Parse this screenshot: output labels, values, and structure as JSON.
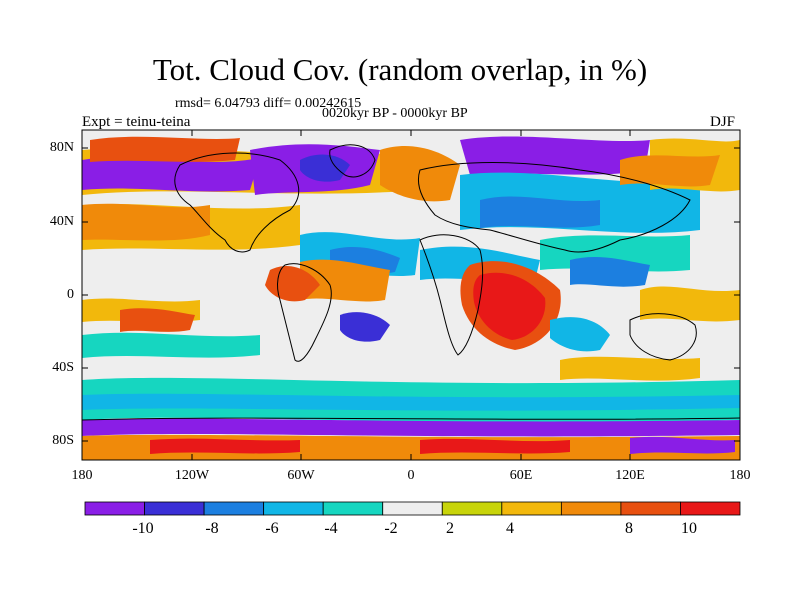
{
  "title": "Tot. Cloud Cov. (random overlap, in %)",
  "stats": "rmsd= 6.04793 diff= 0.00242615",
  "period": "0020kyr BP - 0000kyr BP",
  "experiment": "Expt = teinu-teina",
  "season": "DJF",
  "map": {
    "lat_ticks": [
      "80N",
      "40N",
      "0",
      "40S",
      "80S"
    ],
    "lon_ticks": [
      "180",
      "120W",
      "60W",
      "0",
      "60E",
      "120E",
      "180"
    ]
  },
  "colorbar": {
    "labels": [
      "-10",
      "-8",
      "-6",
      "-4",
      "-2",
      "2",
      "4",
      "8",
      "10"
    ],
    "colors": [
      "#8a1ee6",
      "#3a2fd6",
      "#1c7fe0",
      "#11b6e6",
      "#16d6c0",
      "#eeeeee",
      "#c8d40a",
      "#f2b80c",
      "#f08a0a",
      "#e85010",
      "#e81818"
    ]
  }
}
